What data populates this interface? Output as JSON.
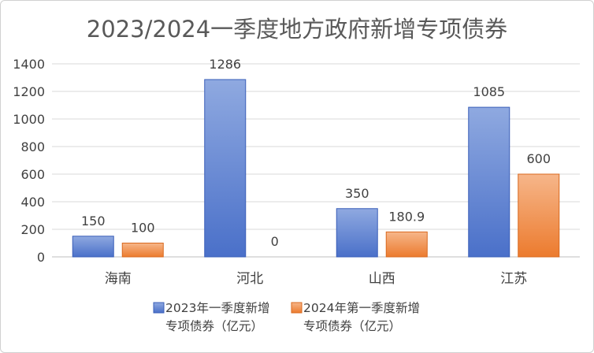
{
  "chart_data": {
    "type": "bar",
    "title": "2023/2024一季度地方政府新增专项债券",
    "categories": [
      "海南",
      "河北",
      "山西",
      "江苏"
    ],
    "series": [
      {
        "name_lines": [
          "2023年一季度新增",
          "专项债券（亿元）"
        ],
        "values": [
          150,
          1286,
          350,
          1085
        ],
        "labels": [
          "150",
          "1286",
          "350",
          "1085"
        ]
      },
      {
        "name_lines": [
          "2024年第一季度新增",
          "专项债券（亿元）"
        ],
        "values": [
          100,
          0,
          180.9,
          600
        ],
        "labels": [
          "100",
          "0",
          "180.9",
          "600"
        ]
      }
    ],
    "yticks": [
      "0",
      "200",
      "400",
      "600",
      "800",
      "1000",
      "1200",
      "1400"
    ],
    "ylim": [
      0,
      1400
    ],
    "grid": true,
    "legend_position": "bottom",
    "colors": {
      "series1_top": "#8fa9e0",
      "series1_bottom": "#4a70c9",
      "series2_top": "#f6b68a",
      "series2_bottom": "#ec7b2e",
      "series1_stroke": "#3a5fb8",
      "series2_stroke": "#d9691f"
    }
  }
}
